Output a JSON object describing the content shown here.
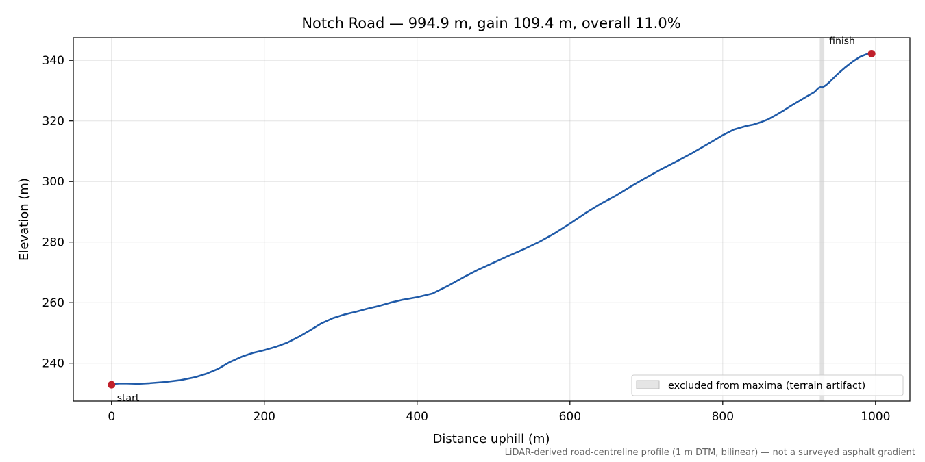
{
  "chart_data": {
    "type": "line",
    "title": "Notch Road — 994.9 m, gain 109.4 m, overall 11.0%",
    "xlabel": "Distance uphill (m)",
    "ylabel": "Elevation (m)",
    "xlim": [
      -50,
      1045
    ],
    "ylim": [
      227.5,
      347.5
    ],
    "xticks": [
      0,
      200,
      400,
      600,
      800,
      1000
    ],
    "yticks": [
      240,
      260,
      280,
      300,
      320,
      340
    ],
    "grid": true,
    "legend_position": "lower-right",
    "series": [
      {
        "color": "#1f5aa8",
        "x": [
          0,
          10,
          20,
          35,
          50,
          70,
          90,
          110,
          125,
          140,
          155,
          170,
          185,
          200,
          215,
          230,
          245,
          260,
          275,
          290,
          305,
          320,
          335,
          350,
          365,
          380,
          400,
          420,
          440,
          460,
          480,
          500,
          520,
          540,
          560,
          580,
          600,
          620,
          640,
          660,
          680,
          700,
          720,
          740,
          760,
          780,
          800,
          815,
          830,
          840,
          850,
          860,
          870,
          880,
          890,
          900,
          910,
          920,
          925,
          928,
          930,
          935,
          940,
          950,
          960,
          970,
          980,
          990,
          994.9
        ],
        "y": [
          233.1,
          233.3,
          233.3,
          233.2,
          233.4,
          233.8,
          234.4,
          235.4,
          236.6,
          238.2,
          240.4,
          242.1,
          243.4,
          244.3,
          245.4,
          246.8,
          248.7,
          250.9,
          253.2,
          254.9,
          256.1,
          257.0,
          258.0,
          258.9,
          260.0,
          260.9,
          261.8,
          263.0,
          265.5,
          268.3,
          270.9,
          273.2,
          275.5,
          277.7,
          280.1,
          282.9,
          286.1,
          289.5,
          292.6,
          295.3,
          298.4,
          301.3,
          304.1,
          306.7,
          309.4,
          312.3,
          315.3,
          317.2,
          318.3,
          318.8,
          319.6,
          320.6,
          322.0,
          323.5,
          325.1,
          326.6,
          328.1,
          329.5,
          330.8,
          331.2,
          331.0,
          331.8,
          332.9,
          335.4,
          337.6,
          339.6,
          341.2,
          342.2,
          342.4
        ]
      }
    ],
    "markers": [
      {
        "x": 0,
        "y": 232.9,
        "label": "start",
        "color": "#c0202b"
      },
      {
        "x": 994.9,
        "y": 342.2,
        "label": "finish",
        "color": "#c0202b"
      }
    ],
    "excluded_band": {
      "x0": 927,
      "x1": 933,
      "color": "#cccccc"
    },
    "legend": {
      "label": "excluded from maxima (terrain artifact)"
    },
    "footnote": "LiDAR-derived road-centreline profile (1 m DTM, bilinear) — not a surveyed asphalt gradient"
  }
}
